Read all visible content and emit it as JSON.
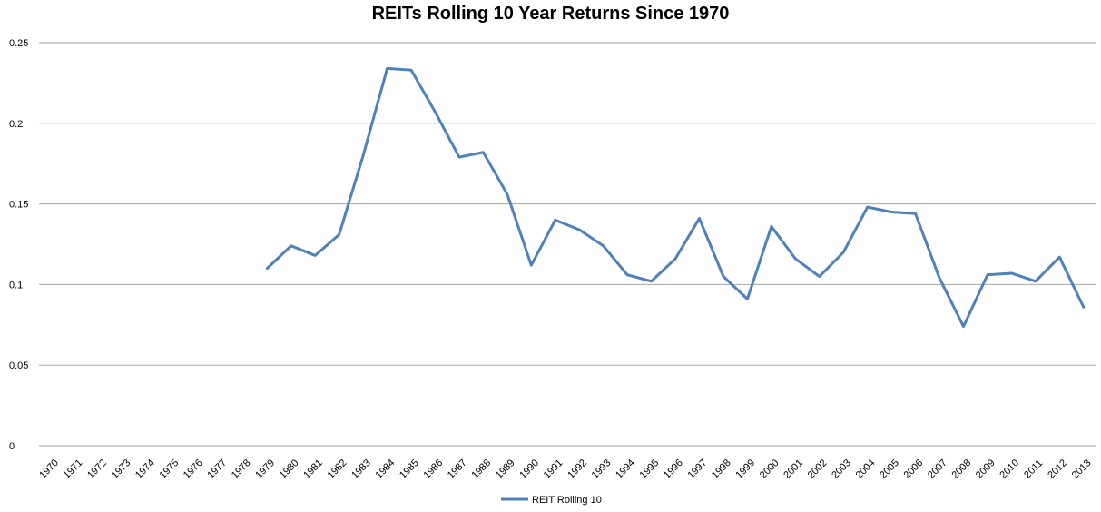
{
  "chart_data": {
    "type": "line",
    "title": "REITs Rolling 10 Year Returns Since 1970",
    "xlabel": "",
    "ylabel": "",
    "x": [
      "1970",
      "1971",
      "1972",
      "1973",
      "1974",
      "1975",
      "1976",
      "1977",
      "1978",
      "1979",
      "1980",
      "1981",
      "1982",
      "1983",
      "1984",
      "1985",
      "1986",
      "1987",
      "1988",
      "1989",
      "1990",
      "1991",
      "1992",
      "1993",
      "1994",
      "1995",
      "1996",
      "1997",
      "1998",
      "1999",
      "2000",
      "2001",
      "2002",
      "2003",
      "2004",
      "2005",
      "2006",
      "2007",
      "2008",
      "2009",
      "2010",
      "2011",
      "2012",
      "2013"
    ],
    "ylim": [
      0,
      0.25
    ],
    "yticks": [
      "0",
      "0.05",
      "0.1",
      "0.15",
      "0.2",
      "0.25"
    ],
    "grid": true,
    "legend_position": "bottom",
    "series": [
      {
        "name": "REIT Rolling 10",
        "color": "#4f81bd",
        "values": [
          null,
          null,
          null,
          null,
          null,
          null,
          null,
          null,
          null,
          0.11,
          0.124,
          0.118,
          0.131,
          0.18,
          0.234,
          0.233,
          0.207,
          0.179,
          0.182,
          0.156,
          0.112,
          0.14,
          0.134,
          0.124,
          0.106,
          0.102,
          0.116,
          0.141,
          0.105,
          0.091,
          0.136,
          0.116,
          0.105,
          0.12,
          0.148,
          0.145,
          0.144,
          0.104,
          0.074,
          0.106,
          0.107,
          0.102,
          0.117,
          0.086
        ]
      }
    ]
  }
}
